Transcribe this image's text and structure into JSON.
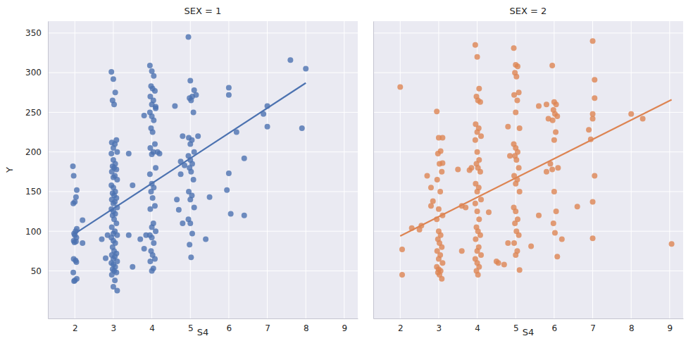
{
  "chart_data": [
    {
      "type": "scatter",
      "title": "SEX = 1",
      "x_label": "S4",
      "y_label": "Y",
      "xlim": [
        1.3,
        9.35
      ],
      "ylim": [
        -10,
        365
      ],
      "xticks": [
        2,
        3,
        4,
        5,
        6,
        7,
        8,
        9
      ],
      "yticks": [
        50,
        100,
        150,
        200,
        250,
        300,
        350
      ],
      "grid": true,
      "series": [
        {
          "type": "scatter",
          "color": "#4c72b0",
          "marker": "circle",
          "x": [
            1.95,
            1.97,
            2.05,
            2.03,
            2.0,
            1.96,
            2.05,
            2.02,
            1.98,
            2.0,
            2.04,
            1.97,
            2.03,
            1.99,
            1.97,
            2.02,
            2.04,
            1.96,
            2.05,
            2.0,
            1.98,
            2.2,
            2.2,
            2.7,
            2.8,
            2.85,
            2.95,
            3.0,
            3.05,
            2.98,
            3.02,
            3.08,
            2.96,
            3.04,
            3.0,
            3.1,
            2.95,
            3.0,
            3.05,
            2.98,
            3.02,
            3.08,
            2.96,
            3.04,
            3.0,
            3.1,
            2.95,
            3.0,
            3.05,
            2.98,
            3.02,
            3.08,
            2.96,
            3.04,
            3.0,
            3.1,
            2.95,
            3.0,
            3.05,
            2.98,
            3.02,
            3.08,
            2.96,
            3.04,
            3.0,
            3.1,
            2.95,
            3.0,
            3.05,
            2.98,
            3.02,
            3.08,
            2.96,
            3.04,
            3.0,
            3.1,
            2.95,
            3.0,
            3.05,
            2.98,
            3.02,
            3.08,
            2.96,
            3.04,
            3.0,
            3.1,
            3.4,
            3.4,
            3.5,
            3.5,
            3.7,
            3.8,
            3.85,
            3.8,
            3.95,
            4.0,
            4.05,
            3.98,
            4.02,
            4.08,
            3.96,
            4.04,
            4.0,
            4.1,
            3.95,
            4.0,
            4.05,
            3.98,
            4.02,
            4.08,
            3.96,
            4.04,
            4.0,
            4.1,
            3.95,
            4.0,
            4.05,
            3.98,
            4.02,
            4.08,
            3.96,
            4.04,
            4.0,
            4.1,
            3.95,
            4.0,
            4.05,
            3.98,
            4.02,
            4.08,
            3.96,
            4.04,
            4.0,
            4.15,
            4.2,
            4.1,
            4.6,
            4.65,
            4.7,
            4.75,
            4.75,
            4.8,
            4.85,
            4.8,
            4.95,
            5.0,
            5.05,
            4.98,
            5.02,
            5.08,
            4.96,
            5.04,
            5.0,
            5.1,
            4.95,
            5.0,
            5.05,
            4.98,
            5.02,
            5.08,
            4.96,
            5.04,
            5.0,
            5.1,
            4.95,
            5.0,
            5.05,
            4.98,
            5.02,
            5.1,
            5.15,
            5.2,
            5.4,
            5.5,
            6.0,
            6.0,
            6.0,
            5.95,
            6.05,
            6.2,
            6.4,
            6.4,
            6.9,
            7.0,
            7.0,
            7.6,
            7.9,
            8.0
          ],
          "values": [
            182,
            170,
            152,
            143,
            137,
            135,
            103,
            100,
            97,
            95,
            92,
            88,
            87,
            86,
            65,
            63,
            61,
            48,
            40,
            38,
            37,
            114,
            85,
            90,
            66,
            95,
            301,
            292,
            275,
            265,
            260,
            215,
            212,
            210,
            205,
            200,
            198,
            190,
            185,
            182,
            180,
            178,
            175,
            170,
            168,
            165,
            158,
            155,
            150,
            148,
            145,
            142,
            140,
            137,
            135,
            130,
            128,
            125,
            122,
            120,
            115,
            110,
            105,
            100,
            97,
            95,
            92,
            88,
            85,
            80,
            75,
            72,
            70,
            68,
            65,
            62,
            60,
            58,
            55,
            52,
            50,
            48,
            45,
            38,
            30,
            25,
            198,
            95,
            158,
            55,
            90,
            246,
            95,
            78,
            309,
            302,
            296,
            283,
            280,
            277,
            270,
            265,
            260,
            257,
            250,
            245,
            240,
            230,
            225,
            210,
            205,
            200,
            197,
            180,
            172,
            160,
            155,
            150,
            142,
            132,
            128,
            110,
            105,
            100,
            95,
            92,
            85,
            75,
            70,
            65,
            62,
            53,
            50,
            200,
            198,
            255,
            258,
            140,
            127,
            172,
            188,
            220,
            183,
            110,
            345,
            290,
            270,
            268,
            265,
            250,
            218,
            215,
            210,
            200,
            195,
            190,
            185,
            180,
            175,
            165,
            150,
            145,
            140,
            130,
            115,
            110,
            97,
            83,
            67,
            278,
            272,
            220,
            90,
            143,
            281,
            272,
            173,
            152,
            122,
            225,
            192,
            120,
            248,
            258,
            232,
            316,
            230,
            305
          ]
        },
        {
          "type": "line",
          "color": "#4c72b0",
          "line_style": "solid",
          "x": [
            2,
            8
          ],
          "values": [
            97,
            287
          ]
        }
      ]
    },
    {
      "type": "scatter",
      "title": "SEX = 2",
      "x_label": "S4",
      "xlim": [
        1.3,
        9.35
      ],
      "ylim": [
        -10,
        365
      ],
      "xticks": [
        2,
        3,
        4,
        5,
        6,
        7,
        8,
        9
      ],
      "yticks": [
        50,
        100,
        150,
        200,
        250,
        300,
        350
      ],
      "grid": true,
      "tick_labels": "x",
      "series": [
        {
          "type": "scatter",
          "color": "#dd8452",
          "marker": "circle",
          "x": [
            2.0,
            2.05,
            2.05,
            2.3,
            2.5,
            2.55,
            2.7,
            2.8,
            2.85,
            2.8,
            2.95,
            3.0,
            3.05,
            2.98,
            3.02,
            3.08,
            2.96,
            3.04,
            3.0,
            3.1,
            2.95,
            3.0,
            3.05,
            2.98,
            3.02,
            3.08,
            2.96,
            3.04,
            3.0,
            3.1,
            2.95,
            3.0,
            3.05,
            2.98,
            3.02,
            3.08,
            3.1,
            3.1,
            3.5,
            3.6,
            3.6,
            3.7,
            3.8,
            3.85,
            3.95,
            4.0,
            4.05,
            3.98,
            4.02,
            4.08,
            3.96,
            4.04,
            4.0,
            4.1,
            3.95,
            4.0,
            4.05,
            3.98,
            4.02,
            4.08,
            3.96,
            4.04,
            4.0,
            4.1,
            3.95,
            4.0,
            4.05,
            3.98,
            4.02,
            4.08,
            3.96,
            4.04,
            4.0,
            4.1,
            3.95,
            4.0,
            4.05,
            3.98,
            4.02,
            4.3,
            4.5,
            4.55,
            4.7,
            4.8,
            4.85,
            4.8,
            4.95,
            5.0,
            5.05,
            4.98,
            5.02,
            5.08,
            4.96,
            5.04,
            5.0,
            5.1,
            4.95,
            5.0,
            5.05,
            4.98,
            5.02,
            5.08,
            4.96,
            5.04,
            5.0,
            5.1,
            4.95,
            5.0,
            5.05,
            4.98,
            5.02,
            5.08,
            4.96,
            5.04,
            5.0,
            5.1,
            5.4,
            5.6,
            5.6,
            5.8,
            5.85,
            5.8,
            5.9,
            5.95,
            6.0,
            6.05,
            5.98,
            6.02,
            6.08,
            5.96,
            6.04,
            6.0,
            6.1,
            5.95,
            6.0,
            6.05,
            5.98,
            6.02,
            6.08,
            6.2,
            6.6,
            6.9,
            6.95,
            7.0,
            7.0,
            7.05,
            7.05,
            7.0,
            7.0,
            7.05,
            7.0,
            8.0,
            8.3,
            9.05
          ],
          "values": [
            282,
            77,
            45,
            104,
            102,
            107,
            170,
            132,
            138,
            155,
            251,
            218,
            201,
            198,
            185,
            175,
            165,
            150,
            128,
            120,
            115,
            100,
            95,
            90,
            85,
            80,
            75,
            70,
            65,
            60,
            55,
            52,
            50,
            48,
            45,
            40,
            218,
            186,
            178,
            132,
            75,
            130,
            177,
            180,
            335,
            320,
            280,
            270,
            265,
            263,
            235,
            230,
            225,
            220,
            215,
            200,
            190,
            185,
            180,
            175,
            160,
            155,
            150,
            140,
            135,
            125,
            115,
            105,
            100,
            95,
            90,
            80,
            75,
            70,
            65,
            60,
            55,
            50,
            45,
            124,
            62,
            60,
            58,
            232,
            195,
            85,
            331,
            310,
            308,
            300,
            295,
            275,
            272,
            265,
            250,
            230,
            210,
            205,
            200,
            195,
            190,
            180,
            170,
            165,
            160,
            150,
            130,
            125,
            115,
            110,
            100,
            95,
            85,
            75,
            70,
            51,
            81,
            258,
            120,
            260,
            242,
            175,
            185,
            309,
            263,
            260,
            253,
            248,
            245,
            240,
            225,
            215,
            180,
            178,
            150,
            125,
            110,
            98,
            68,
            90,
            131,
            228,
            216,
            137,
            340,
            291,
            268,
            248,
            242,
            170,
            91,
            248,
            242,
            84
          ]
        },
        {
          "type": "line",
          "color": "#dd8452",
          "line_style": "solid",
          "x": [
            2,
            9.05
          ],
          "values": [
            94,
            266
          ]
        }
      ]
    }
  ]
}
